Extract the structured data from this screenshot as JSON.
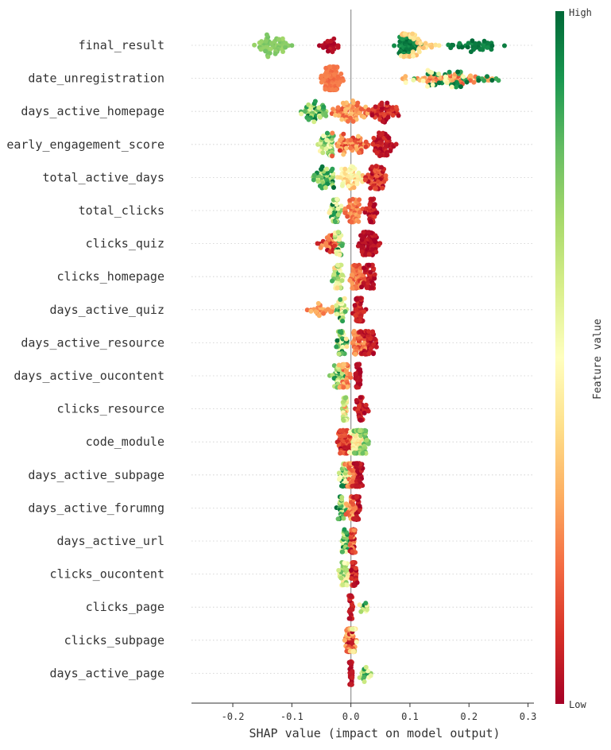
{
  "chart_data": {
    "type": "scatter",
    "subtype": "shap-beeswarm",
    "title": "",
    "xlabel": "SHAP value (impact on model output)",
    "xlim": [
      -0.27,
      0.31
    ],
    "x_ticks": [
      -0.2,
      -0.1,
      0.0,
      0.1,
      0.2,
      0.3
    ],
    "x_tick_labels": [
      "-0.2",
      "-0.1",
      "0.0",
      "0.1",
      "0.2",
      "0.3"
    ],
    "zero_line": 0.0,
    "row_gridlines": "dotted",
    "colorbar": {
      "title": "Feature value",
      "high_label": "High",
      "low_label": "Low",
      "colormap": "RdYlGn",
      "stops": [
        "#a50026",
        "#d73027",
        "#f46d43",
        "#fdae61",
        "#fee08b",
        "#ffffbf",
        "#d9ef8b",
        "#a6d96a",
        "#66bd63",
        "#1a9850",
        "#006837"
      ]
    },
    "features": [
      {
        "name": "final_result",
        "clusters": [
          {
            "center": -0.135,
            "spread": 0.11,
            "count": 55,
            "fv": [
              0.7,
              0.78
            ]
          },
          {
            "center": -0.035,
            "spread": 0.05,
            "count": 22,
            "fv": [
              0.0,
              0.06
            ]
          },
          {
            "center": 0.095,
            "spread": 0.07,
            "count": 45,
            "fv": [
              0.88,
              1.0
            ]
          },
          {
            "center": 0.11,
            "spread": 0.1,
            "count": 40,
            "fv": [
              0.32,
              0.45
            ]
          },
          {
            "center": 0.21,
            "spread": 0.16,
            "count": 40,
            "fv": [
              0.92,
              1.0
            ]
          }
        ]
      },
      {
        "name": "date_unregistration",
        "clusters": [
          {
            "center": -0.032,
            "spread": 0.045,
            "count": 110,
            "fv": [
              0.18,
              0.24
            ]
          },
          {
            "center": 0.17,
            "spread": 0.24,
            "count": 60,
            "fv": [
              0.15,
              0.35
            ]
          },
          {
            "center": 0.18,
            "spread": 0.22,
            "count": 30,
            "fv": [
              0.85,
              1.0
            ]
          },
          {
            "center": 0.14,
            "spread": 0.15,
            "count": 15,
            "fv": [
              0.45,
              0.6
            ]
          }
        ]
      },
      {
        "name": "days_active_homepage",
        "clusters": [
          {
            "center": -0.065,
            "spread": 0.09,
            "count": 45,
            "fv": [
              0.55,
              1.0
            ]
          },
          {
            "center": 0.0,
            "spread": 0.11,
            "count": 70,
            "fv": [
              0.15,
              0.35
            ]
          },
          {
            "center": 0.055,
            "spread": 0.07,
            "count": 55,
            "fv": [
              0.0,
              0.15
            ]
          }
        ]
      },
      {
        "name": "early_engagement_score",
        "clusters": [
          {
            "center": -0.04,
            "spread": 0.05,
            "count": 40,
            "fv": [
              0.45,
              0.9
            ]
          },
          {
            "center": 0.0,
            "spread": 0.08,
            "count": 60,
            "fv": [
              0.1,
              0.35
            ]
          },
          {
            "center": 0.055,
            "spread": 0.06,
            "count": 60,
            "fv": [
              0.0,
              0.12
            ]
          }
        ]
      },
      {
        "name": "total_active_days",
        "clusters": [
          {
            "center": -0.045,
            "spread": 0.06,
            "count": 45,
            "fv": [
              0.55,
              1.0
            ]
          },
          {
            "center": 0.0,
            "spread": 0.07,
            "count": 55,
            "fv": [
              0.3,
              0.55
            ]
          },
          {
            "center": 0.045,
            "spread": 0.05,
            "count": 60,
            "fv": [
              0.0,
              0.2
            ]
          }
        ]
      },
      {
        "name": "total_clicks",
        "clusters": [
          {
            "center": -0.025,
            "spread": 0.035,
            "count": 35,
            "fv": [
              0.4,
              1.0
            ]
          },
          {
            "center": 0.005,
            "spread": 0.05,
            "count": 50,
            "fv": [
              0.15,
              0.3
            ]
          },
          {
            "center": 0.035,
            "spread": 0.025,
            "count": 50,
            "fv": [
              0.0,
              0.12
            ]
          }
        ]
      },
      {
        "name": "clicks_quiz",
        "clusters": [
          {
            "center": -0.035,
            "spread": 0.06,
            "count": 30,
            "fv": [
              0.0,
              0.3
            ]
          },
          {
            "center": -0.02,
            "spread": 0.02,
            "count": 25,
            "fv": [
              0.35,
              1.0
            ]
          },
          {
            "center": 0.03,
            "spread": 0.05,
            "count": 70,
            "fv": [
              0.0,
              0.08
            ]
          }
        ]
      },
      {
        "name": "clicks_homepage",
        "clusters": [
          {
            "center": -0.02,
            "spread": 0.03,
            "count": 40,
            "fv": [
              0.35,
              0.9
            ]
          },
          {
            "center": 0.01,
            "spread": 0.05,
            "count": 50,
            "fv": [
              0.1,
              0.3
            ]
          },
          {
            "center": 0.03,
            "spread": 0.03,
            "count": 50,
            "fv": [
              0.0,
              0.1
            ]
          }
        ]
      },
      {
        "name": "days_active_quiz",
        "clusters": [
          {
            "center": -0.05,
            "spread": 0.07,
            "count": 25,
            "fv": [
              0.2,
              0.35
            ]
          },
          {
            "center": -0.018,
            "spread": 0.03,
            "count": 30,
            "fv": [
              0.35,
              1.0
            ]
          },
          {
            "center": 0.015,
            "spread": 0.03,
            "count": 60,
            "fv": [
              0.0,
              0.12
            ]
          }
        ]
      },
      {
        "name": "days_active_resource",
        "clusters": [
          {
            "center": -0.015,
            "spread": 0.03,
            "count": 45,
            "fv": [
              0.4,
              1.0
            ]
          },
          {
            "center": 0.015,
            "spread": 0.04,
            "count": 50,
            "fv": [
              0.1,
              0.3
            ]
          },
          {
            "center": 0.03,
            "spread": 0.04,
            "count": 50,
            "fv": [
              0.0,
              0.1
            ]
          }
        ]
      },
      {
        "name": "days_active_oucontent",
        "clusters": [
          {
            "center": -0.022,
            "spread": 0.035,
            "count": 30,
            "fv": [
              0.5,
              1.0
            ]
          },
          {
            "center": -0.01,
            "spread": 0.03,
            "count": 40,
            "fv": [
              0.15,
              0.35
            ]
          },
          {
            "center": 0.012,
            "spread": 0.015,
            "count": 55,
            "fv": [
              0.0,
              0.08
            ]
          }
        ]
      },
      {
        "name": "clicks_resource",
        "clusters": [
          {
            "center": -0.01,
            "spread": 0.012,
            "count": 40,
            "fv": [
              0.25,
              0.75
            ]
          },
          {
            "center": 0.018,
            "spread": 0.03,
            "count": 40,
            "fv": [
              0.0,
              0.12
            ]
          }
        ]
      },
      {
        "name": "code_module",
        "clusters": [
          {
            "center": -0.01,
            "spread": 0.035,
            "count": 60,
            "fv": [
              0.0,
              0.2
            ]
          },
          {
            "center": 0.008,
            "spread": 0.03,
            "count": 40,
            "fv": [
              0.35,
              0.6
            ]
          },
          {
            "center": 0.018,
            "spread": 0.04,
            "count": 50,
            "fv": [
              0.65,
              0.85
            ]
          }
        ]
      },
      {
        "name": "days_active_subpage",
        "clusters": [
          {
            "center": -0.012,
            "spread": 0.025,
            "count": 40,
            "fv": [
              0.4,
              1.0
            ]
          },
          {
            "center": 0.0,
            "spread": 0.03,
            "count": 40,
            "fv": [
              0.15,
              0.35
            ]
          },
          {
            "center": 0.012,
            "spread": 0.02,
            "count": 50,
            "fv": [
              0.0,
              0.08
            ]
          }
        ]
      },
      {
        "name": "days_active_forumng",
        "clusters": [
          {
            "center": -0.015,
            "spread": 0.025,
            "count": 30,
            "fv": [
              0.5,
              1.0
            ]
          },
          {
            "center": 0.0,
            "spread": 0.025,
            "count": 30,
            "fv": [
              0.15,
              0.35
            ]
          },
          {
            "center": 0.01,
            "spread": 0.02,
            "count": 45,
            "fv": [
              0.0,
              0.08
            ]
          }
        ]
      },
      {
        "name": "days_active_url",
        "clusters": [
          {
            "center": -0.01,
            "spread": 0.02,
            "count": 25,
            "fv": [
              0.5,
              1.0
            ]
          },
          {
            "center": 0.003,
            "spread": 0.015,
            "count": 45,
            "fv": [
              0.0,
              0.3
            ]
          }
        ]
      },
      {
        "name": "clicks_oucontent",
        "clusters": [
          {
            "center": -0.012,
            "spread": 0.025,
            "count": 35,
            "fv": [
              0.35,
              0.8
            ]
          },
          {
            "center": 0.005,
            "spread": 0.015,
            "count": 50,
            "fv": [
              0.0,
              0.15
            ]
          }
        ]
      },
      {
        "name": "clicks_page",
        "clusters": [
          {
            "center": 0.0,
            "spread": 0.008,
            "count": 50,
            "fv": [
              0.0,
              0.1
            ]
          },
          {
            "center": 0.025,
            "spread": 0.04,
            "count": 12,
            "fv": [
              0.3,
              1.0
            ]
          }
        ]
      },
      {
        "name": "clicks_subpage",
        "clusters": [
          {
            "center": 0.0,
            "spread": 0.03,
            "count": 60,
            "fv": [
              0.0,
              0.35
            ]
          },
          {
            "center": 0.005,
            "spread": 0.02,
            "count": 15,
            "fv": [
              0.35,
              0.7
            ]
          }
        ]
      },
      {
        "name": "days_active_page",
        "clusters": [
          {
            "center": 0.0,
            "spread": 0.008,
            "count": 50,
            "fv": [
              0.0,
              0.1
            ]
          },
          {
            "center": 0.025,
            "spread": 0.035,
            "count": 18,
            "fv": [
              0.5,
              0.9
            ]
          }
        ]
      }
    ]
  }
}
